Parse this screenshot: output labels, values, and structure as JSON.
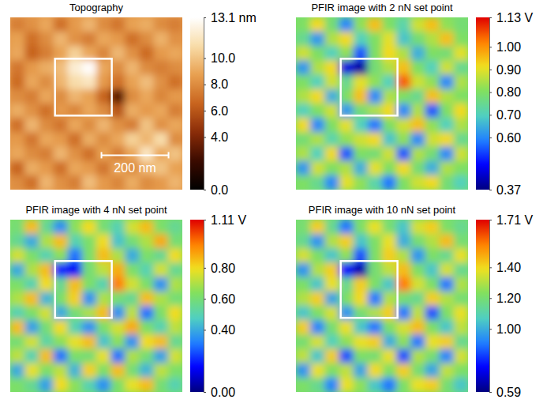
{
  "chart_data": [
    {
      "type": "heatmap",
      "title": "Topography",
      "tick_labels": false,
      "colors": [
        "#000000",
        "#3a0a00",
        "#8a2c08",
        "#c8641e",
        "#e8a050",
        "#f8dca8",
        "#ffffff"
      ],
      "annotations": [
        "200 nm"
      ],
      "colorbar": {
        "range": [
          0,
          13.1
        ],
        "ticks": [
          {
            "value": 0,
            "label": "0.0"
          },
          {
            "value": 4,
            "label": "4.0"
          },
          {
            "value": 6,
            "label": "6.0"
          },
          {
            "value": 8,
            "label": "8.0"
          },
          {
            "value": 10,
            "label": "10.0"
          },
          {
            "value": 13.1,
            "label": "13.1 nm"
          }
        ]
      },
      "cells": [
        [
          7.5,
          8.2,
          9.0,
          7.0,
          8.5,
          9.5,
          8.0,
          7.2,
          8.8,
          9.2,
          8.0,
          7.5
        ],
        [
          8.8,
          7.0,
          8.0,
          9.5,
          8.2,
          7.5,
          9.0,
          8.5,
          7.0,
          8.0,
          9.4,
          8.2
        ],
        [
          9.0,
          6.5,
          7.5,
          8.8,
          10.5,
          9.0,
          7.8,
          9.6,
          8.2,
          6.8,
          8.5,
          9.0
        ],
        [
          7.2,
          8.5,
          9.2,
          9.8,
          12.0,
          13.0,
          9.0,
          8.0,
          9.5,
          8.0,
          7.5,
          8.0
        ],
        [
          6.8,
          9.0,
          8.0,
          9.5,
          11.0,
          11.5,
          8.5,
          7.0,
          8.8,
          9.8,
          8.2,
          7.0
        ],
        [
          8.0,
          7.5,
          9.0,
          8.0,
          9.5,
          8.8,
          6.5,
          3.0,
          8.0,
          9.0,
          7.8,
          8.5
        ],
        [
          9.2,
          8.2,
          7.0,
          8.5,
          7.8,
          9.0,
          8.0,
          6.0,
          9.2,
          8.5,
          9.0,
          7.5
        ],
        [
          7.0,
          9.5,
          8.0,
          7.2,
          9.0,
          8.0,
          9.5,
          8.2,
          7.5,
          10.0,
          8.2,
          9.0
        ],
        [
          8.5,
          7.2,
          9.0,
          8.5,
          7.0,
          9.2,
          8.0,
          9.0,
          10.5,
          9.5,
          11.0,
          8.0
        ],
        [
          9.0,
          8.0,
          7.5,
          9.5,
          8.2,
          7.0,
          8.8,
          7.5,
          9.0,
          11.5,
          9.0,
          10.0
        ],
        [
          6.5,
          9.2,
          8.5,
          7.0,
          9.0,
          8.5,
          7.2,
          9.0,
          8.0,
          9.5,
          10.0,
          8.8
        ],
        [
          8.0,
          7.0,
          9.5,
          8.2,
          7.5,
          9.8,
          8.5,
          7.8,
          9.2,
          8.0,
          8.5,
          9.5
        ]
      ]
    },
    {
      "type": "heatmap",
      "title": "PFIR image with 2 nN set point",
      "tick_labels": false,
      "colors": [
        "#00007f",
        "#0000ff",
        "#2080ff",
        "#50d0c0",
        "#80e060",
        "#f0e020",
        "#ff8000",
        "#e00000"
      ],
      "colorbar": {
        "range": [
          0.37,
          1.13
        ],
        "ticks": [
          0.37,
          {
            "value": 0.6,
            "label": "0.60"
          },
          {
            "value": 0.7,
            "label": "0.70"
          },
          {
            "value": 0.8,
            "label": "0.80"
          },
          {
            "value": 0.9,
            "label": "0.90"
          },
          {
            "value": 1,
            "label": "1.00"
          },
          {
            "value": 1.13,
            "label": "1.13 V"
          }
        ]
      },
      "cells": [
        [
          0.8,
          0.92,
          0.78,
          0.6,
          0.82,
          0.95,
          0.8,
          0.72,
          0.88,
          0.95,
          0.82,
          0.78
        ],
        [
          0.75,
          0.62,
          0.85,
          0.92,
          0.7,
          0.8,
          0.9,
          0.68,
          0.78,
          0.85,
          0.95,
          0.8
        ],
        [
          0.88,
          0.8,
          0.7,
          0.82,
          0.55,
          0.8,
          0.92,
          0.85,
          0.65,
          0.8,
          0.78,
          0.9
        ],
        [
          0.62,
          0.85,
          0.92,
          0.45,
          0.4,
          0.78,
          0.85,
          0.95,
          0.8,
          0.7,
          0.88,
          0.75
        ],
        [
          0.8,
          0.7,
          0.88,
          0.75,
          0.9,
          0.82,
          0.7,
          1.05,
          0.88,
          0.82,
          0.6,
          0.85
        ],
        [
          0.85,
          0.92,
          0.65,
          0.8,
          0.95,
          0.6,
          0.85,
          0.8,
          0.75,
          0.95,
          0.85,
          0.8
        ],
        [
          0.7,
          0.8,
          0.88,
          0.62,
          0.78,
          0.85,
          0.92,
          0.6,
          0.85,
          0.55,
          0.8,
          0.92
        ],
        [
          0.92,
          0.6,
          0.8,
          0.9,
          0.7,
          0.58,
          0.8,
          0.88,
          0.95,
          0.82,
          0.7,
          0.85
        ],
        [
          0.78,
          0.85,
          0.72,
          0.82,
          0.88,
          0.92,
          0.68,
          0.82,
          0.6,
          0.88,
          0.92,
          0.75
        ],
        [
          0.85,
          0.7,
          0.92,
          0.55,
          0.8,
          0.78,
          0.88,
          0.55,
          0.85,
          0.78,
          0.6,
          0.88
        ],
        [
          0.62,
          0.88,
          0.8,
          0.85,
          0.65,
          0.9,
          0.8,
          0.92,
          0.78,
          0.65,
          0.85,
          0.8
        ],
        [
          0.8,
          0.75,
          0.6,
          0.9,
          0.82,
          0.72,
          0.58,
          0.8,
          0.88,
          0.92,
          0.78,
          0.7
        ]
      ]
    },
    {
      "type": "heatmap",
      "title": "PFIR image with 4 nN set point",
      "tick_labels": false,
      "colors": [
        "#00007f",
        "#0000ff",
        "#2080ff",
        "#50d0c0",
        "#80e060",
        "#f0e020",
        "#ff8000",
        "#e00000"
      ],
      "colorbar": {
        "range": [
          0,
          1.11
        ],
        "ticks": [
          {
            "value": 0,
            "label": "0.00"
          },
          {
            "value": 0.4,
            "label": "0.40"
          },
          {
            "value": 0.6,
            "label": "0.60"
          },
          {
            "value": 0.8,
            "label": "0.80"
          },
          {
            "value": 1.11,
            "label": "1.11 V"
          }
        ]
      },
      "cells": [
        [
          0.6,
          0.85,
          0.55,
          0.35,
          0.65,
          0.8,
          0.6,
          0.5,
          0.75,
          0.85,
          0.62,
          0.55
        ],
        [
          0.55,
          0.4,
          0.7,
          0.85,
          0.5,
          0.62,
          0.8,
          0.45,
          0.6,
          0.7,
          0.88,
          0.6
        ],
        [
          0.75,
          0.62,
          0.5,
          0.65,
          0.3,
          0.62,
          0.85,
          0.7,
          0.4,
          0.62,
          0.55,
          0.8
        ],
        [
          0.4,
          0.7,
          0.85,
          0.2,
          0.15,
          0.6,
          0.72,
          0.88,
          0.62,
          0.5,
          0.75,
          0.55
        ],
        [
          0.62,
          0.5,
          0.8,
          0.55,
          0.85,
          0.62,
          0.5,
          0.95,
          0.75,
          0.62,
          0.35,
          0.7
        ],
        [
          0.7,
          0.85,
          0.42,
          0.62,
          0.82,
          0.35,
          0.7,
          0.6,
          0.55,
          0.85,
          0.7,
          0.6
        ],
        [
          0.5,
          0.62,
          0.75,
          0.4,
          0.6,
          0.7,
          0.85,
          0.35,
          0.72,
          0.3,
          0.62,
          0.8
        ],
        [
          0.85,
          0.38,
          0.6,
          0.8,
          0.5,
          0.35,
          0.62,
          0.75,
          0.88,
          0.62,
          0.5,
          0.72
        ],
        [
          0.6,
          0.75,
          0.52,
          0.65,
          0.78,
          0.85,
          0.45,
          0.65,
          0.35,
          0.8,
          0.85,
          0.55
        ],
        [
          0.72,
          0.5,
          0.85,
          0.3,
          0.62,
          0.6,
          0.78,
          0.3,
          0.7,
          0.6,
          0.38,
          0.75
        ],
        [
          0.4,
          0.78,
          0.62,
          0.72,
          0.42,
          0.82,
          0.62,
          0.85,
          0.6,
          0.42,
          0.72,
          0.62
        ],
        [
          0.62,
          0.55,
          0.38,
          0.8,
          0.65,
          0.5,
          0.35,
          0.62,
          0.78,
          0.85,
          0.6,
          0.5
        ]
      ]
    },
    {
      "type": "heatmap",
      "title": "PFIR image with 10 nN set point",
      "tick_labels": false,
      "colors": [
        "#00007f",
        "#0000ff",
        "#2080ff",
        "#50d0c0",
        "#80e060",
        "#f0e020",
        "#ff8000",
        "#e00000"
      ],
      "colorbar": {
        "range": [
          0.59,
          1.71
        ],
        "ticks": [
          0.59,
          {
            "value": 1,
            "label": "1.00"
          },
          {
            "value": 1.2,
            "label": "1.20"
          },
          {
            "value": 1.4,
            "label": "1.40"
          },
          {
            "value": 1.71,
            "label": "1.71 V"
          }
        ]
      },
      "cells": [
        [
          1.2,
          1.42,
          1.15,
          0.9,
          1.22,
          1.38,
          1.2,
          1.05,
          1.35,
          1.42,
          1.22,
          1.15
        ],
        [
          1.15,
          0.95,
          1.3,
          1.42,
          1.05,
          1.22,
          1.38,
          1.0,
          1.2,
          1.3,
          1.45,
          1.2
        ],
        [
          1.35,
          1.22,
          1.05,
          1.25,
          0.85,
          1.22,
          1.42,
          1.3,
          0.95,
          1.22,
          1.15,
          1.38
        ],
        [
          0.95,
          1.3,
          1.42,
          0.75,
          0.65,
          1.2,
          1.32,
          1.45,
          1.22,
          1.05,
          1.35,
          1.15
        ],
        [
          1.22,
          1.05,
          1.38,
          1.15,
          1.42,
          1.22,
          1.05,
          1.55,
          1.35,
          1.22,
          0.9,
          1.3
        ],
        [
          1.3,
          1.42,
          0.98,
          1.22,
          1.4,
          0.9,
          1.3,
          1.2,
          1.15,
          1.42,
          1.3,
          1.2
        ],
        [
          1.05,
          1.22,
          1.35,
          0.95,
          1.2,
          1.3,
          1.42,
          0.9,
          1.32,
          0.85,
          1.22,
          1.38
        ],
        [
          1.42,
          0.92,
          1.2,
          1.38,
          1.05,
          0.9,
          1.22,
          1.35,
          1.45,
          1.22,
          1.05,
          1.32
        ],
        [
          1.2,
          1.35,
          1.08,
          1.25,
          1.38,
          1.42,
          1.0,
          1.25,
          0.9,
          1.38,
          1.42,
          1.15
        ],
        [
          1.32,
          1.05,
          1.42,
          0.85,
          1.22,
          1.2,
          1.38,
          0.85,
          1.3,
          1.2,
          0.92,
          1.35
        ],
        [
          0.95,
          1.38,
          1.22,
          1.32,
          0.98,
          1.4,
          1.22,
          1.42,
          1.2,
          0.98,
          1.32,
          1.22
        ],
        [
          1.22,
          1.15,
          0.92,
          1.38,
          1.25,
          1.05,
          0.9,
          1.22,
          1.38,
          1.42,
          1.2,
          1.05
        ]
      ]
    }
  ]
}
